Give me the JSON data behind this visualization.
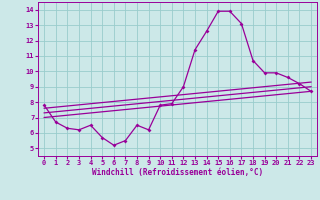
{
  "line1_x": [
    0,
    1,
    2,
    3,
    4,
    5,
    6,
    7,
    8,
    9,
    10,
    11,
    12,
    13,
    14,
    15,
    16,
    17,
    18,
    19,
    20,
    21,
    22,
    23
  ],
  "line1_y": [
    7.8,
    6.7,
    6.3,
    6.2,
    6.5,
    5.7,
    5.2,
    5.5,
    6.5,
    6.2,
    7.8,
    7.9,
    9.0,
    11.4,
    12.6,
    13.9,
    13.9,
    13.1,
    10.7,
    9.9,
    9.9,
    9.6,
    9.2,
    8.7
  ],
  "line2_x": [
    0,
    23
  ],
  "line2_y": [
    7.0,
    8.7
  ],
  "line3_x": [
    0,
    23
  ],
  "line3_y": [
    7.3,
    9.0
  ],
  "line4_x": [
    0,
    23
  ],
  "line4_y": [
    7.6,
    9.3
  ],
  "color": "#990099",
  "bg_color": "#cce8e8",
  "grid_color": "#99cccc",
  "xlabel": "Windchill (Refroidissement éolien,°C)",
  "ylim": [
    4.5,
    14.5
  ],
  "xlim": [
    -0.5,
    23.5
  ],
  "yticks": [
    5,
    6,
    7,
    8,
    9,
    10,
    11,
    12,
    13,
    14
  ],
  "xticks": [
    0,
    1,
    2,
    3,
    4,
    5,
    6,
    7,
    8,
    9,
    10,
    11,
    12,
    13,
    14,
    15,
    16,
    17,
    18,
    19,
    20,
    21,
    22,
    23
  ],
  "tick_fontsize": 5.0,
  "xlabel_fontsize": 5.5
}
